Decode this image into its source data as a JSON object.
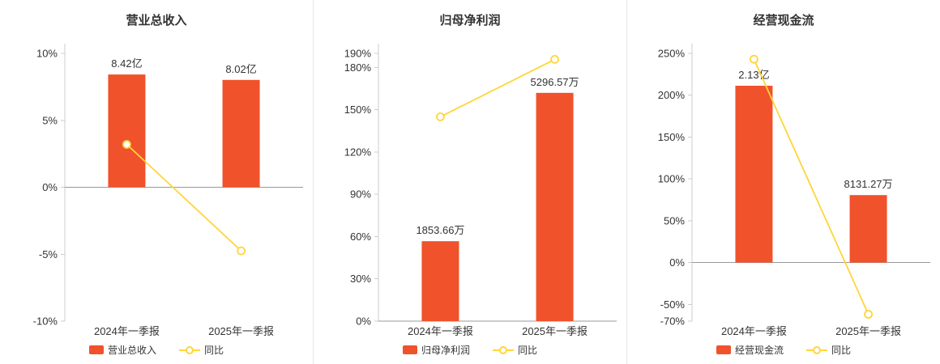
{
  "colors": {
    "bar": "#f0522b",
    "line": "#ffd53a",
    "axis": "#cccccc",
    "zero_line": "#999999",
    "text": "#333333",
    "divider": "#e6e6e6",
    "background": "#ffffff"
  },
  "chart_data": [
    {
      "type": "bar+line",
      "title": "营业总收入",
      "categories": [
        "2024年一季报",
        "2025年一季报"
      ],
      "y_axis": {
        "min": -10,
        "max": 10,
        "ticks": [
          "10%",
          "5%",
          "0%",
          "-5%",
          "-10%"
        ],
        "tick_values": [
          10,
          5,
          0,
          -5,
          -10
        ],
        "grid": false
      },
      "bars": {
        "name": "营业总收入",
        "value_labels": [
          "8.42亿",
          "8.02亿"
        ],
        "plot_values": [
          8.42,
          8.02
        ]
      },
      "line": {
        "name": "同比",
        "plot_values": [
          3.2,
          -4.75
        ]
      },
      "legend": [
        "营业总收入",
        "同比"
      ],
      "legend_position": "bottom"
    },
    {
      "type": "bar+line",
      "title": "归母净利润",
      "categories": [
        "2024年一季报",
        "2025年一季报"
      ],
      "y_axis": {
        "min": 0,
        "max": 190,
        "ticks": [
          "190%",
          "180%",
          "150%",
          "120%",
          "90%",
          "60%",
          "30%",
          "0%"
        ],
        "tick_values": [
          190,
          180,
          150,
          120,
          90,
          60,
          30,
          0
        ],
        "grid": false
      },
      "bars": {
        "name": "归母净利润",
        "value_labels": [
          "1853.66万",
          "5296.57万"
        ],
        "plot_values": [
          56.7,
          162
        ]
      },
      "line": {
        "name": "同比",
        "plot_values": [
          145,
          185.74
        ]
      },
      "legend": [
        "归母净利润",
        "同比"
      ],
      "legend_position": "bottom"
    },
    {
      "type": "bar+line",
      "title": "经营现金流",
      "categories": [
        "2024年一季报",
        "2025年一季报"
      ],
      "y_axis": {
        "min": -70,
        "max": 250,
        "ticks": [
          "250%",
          "200%",
          "150%",
          "100%",
          "50%",
          "0%",
          "-50%",
          "-70%"
        ],
        "tick_values": [
          250,
          200,
          150,
          100,
          50,
          0,
          -50,
          -70
        ],
        "grid": false
      },
      "bars": {
        "name": "经营现金流",
        "value_labels": [
          "2.13亿",
          "8131.27万"
        ],
        "plot_values": [
          211.3,
          80.6
        ]
      },
      "line": {
        "name": "同比",
        "plot_values": [
          243,
          -61.83
        ]
      },
      "legend": [
        "经营现金流",
        "同比"
      ],
      "legend_position": "bottom"
    }
  ]
}
